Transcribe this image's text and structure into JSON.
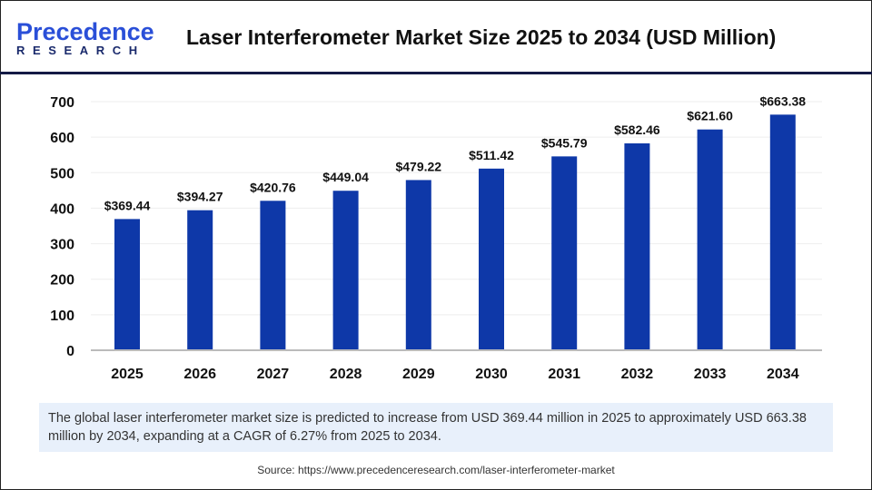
{
  "logo": {
    "line1_a": "P",
    "line1_b": "recedence",
    "line2": "RESEARCH"
  },
  "title": "Laser Interferometer Market Size 2025 to 2034 (USD Million)",
  "chart_data": {
    "type": "bar",
    "title": "Laser Interferometer Market Size 2025 to 2034 (USD Million)",
    "categories": [
      "2025",
      "2026",
      "2027",
      "2028",
      "2029",
      "2030",
      "2031",
      "2032",
      "2033",
      "2034"
    ],
    "values": [
      369.44,
      394.27,
      420.76,
      449.04,
      479.22,
      511.42,
      545.79,
      582.46,
      621.6,
      663.38
    ],
    "data_labels": [
      "$369.44",
      "$394.27",
      "$420.76",
      "$449.04",
      "$479.22",
      "$511.42",
      "$545.79",
      "$582.46",
      "$621.60",
      "$663.38"
    ],
    "yticks": [
      "0",
      "100",
      "200",
      "300",
      "400",
      "500",
      "600",
      "700"
    ],
    "ylim": [
      0,
      700
    ],
    "grid": true,
    "bar_color": "#0e38a8"
  },
  "description": "The global laser interferometer market size is predicted to increase from USD 369.44 million in 2025 to approximately USD 663.38 million by 2034, expanding at a CAGR of 6.27% from 2025 to 2034.",
  "source": "Source: https://www.precedenceresearch.com/laser-interferometer-market"
}
